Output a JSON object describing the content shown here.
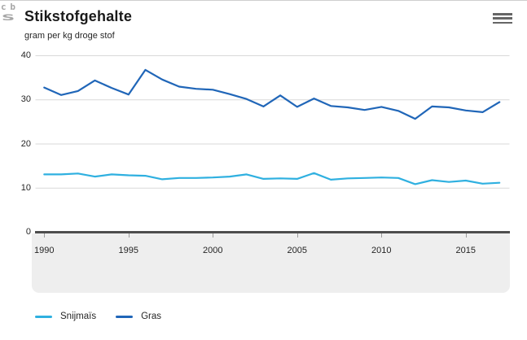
{
  "header": {
    "title": "Stikstofgehalte",
    "subtitle": "gram per kg droge stof"
  },
  "icons": {
    "menu": "hamburger-icon",
    "logo": "cbs-logo"
  },
  "branding": {
    "logo_text_top": "cb",
    "logo_text_bottom": "s"
  },
  "colors": {
    "gridline": "#d9d9d9",
    "axis_line": "#4d4d4d",
    "tick": "#9b9b9b",
    "band_background": "#eeeeee",
    "text": "#262626",
    "snijmais": "#2fb0e0",
    "gras": "#2066b8"
  },
  "chart_data": {
    "type": "line",
    "title": "Stikstofgehalte",
    "subtitle": "gram per kg droge stof",
    "ylabel": "gram per kg droge stof",
    "xlabel": "",
    "ylim": [
      0,
      40
    ],
    "yticks": [
      0,
      10,
      20,
      30,
      40
    ],
    "xticks": [
      1990,
      1995,
      2000,
      2005,
      2010,
      2015
    ],
    "grid": true,
    "legend_position": "bottom-left",
    "x": [
      1990,
      1991,
      1992,
      1993,
      1994,
      1995,
      1996,
      1997,
      1998,
      1999,
      2000,
      2001,
      2002,
      2003,
      2004,
      2005,
      2006,
      2007,
      2008,
      2009,
      2010,
      2011,
      2012,
      2013,
      2014,
      2015,
      2016,
      2017
    ],
    "series": [
      {
        "name": "Snijmaïs",
        "color": "#2fb0e0",
        "values": [
          13.1,
          13.1,
          13.3,
          12.6,
          13.1,
          12.9,
          12.8,
          12.0,
          12.3,
          12.3,
          12.4,
          12.6,
          13.1,
          12.1,
          12.2,
          12.1,
          13.4,
          11.9,
          12.2,
          12.3,
          12.4,
          12.3,
          10.9,
          11.8,
          11.4,
          11.7,
          11.0,
          11.2
        ]
      },
      {
        "name": "Gras",
        "color": "#2066b8",
        "values": [
          32.8,
          31.1,
          32.0,
          34.4,
          32.7,
          31.2,
          36.8,
          34.6,
          33.0,
          32.5,
          32.3,
          31.3,
          30.2,
          28.5,
          31.0,
          28.4,
          30.3,
          28.6,
          28.3,
          27.7,
          28.4,
          27.5,
          25.7,
          28.5,
          28.3,
          27.6,
          27.2,
          29.5
        ]
      }
    ]
  }
}
